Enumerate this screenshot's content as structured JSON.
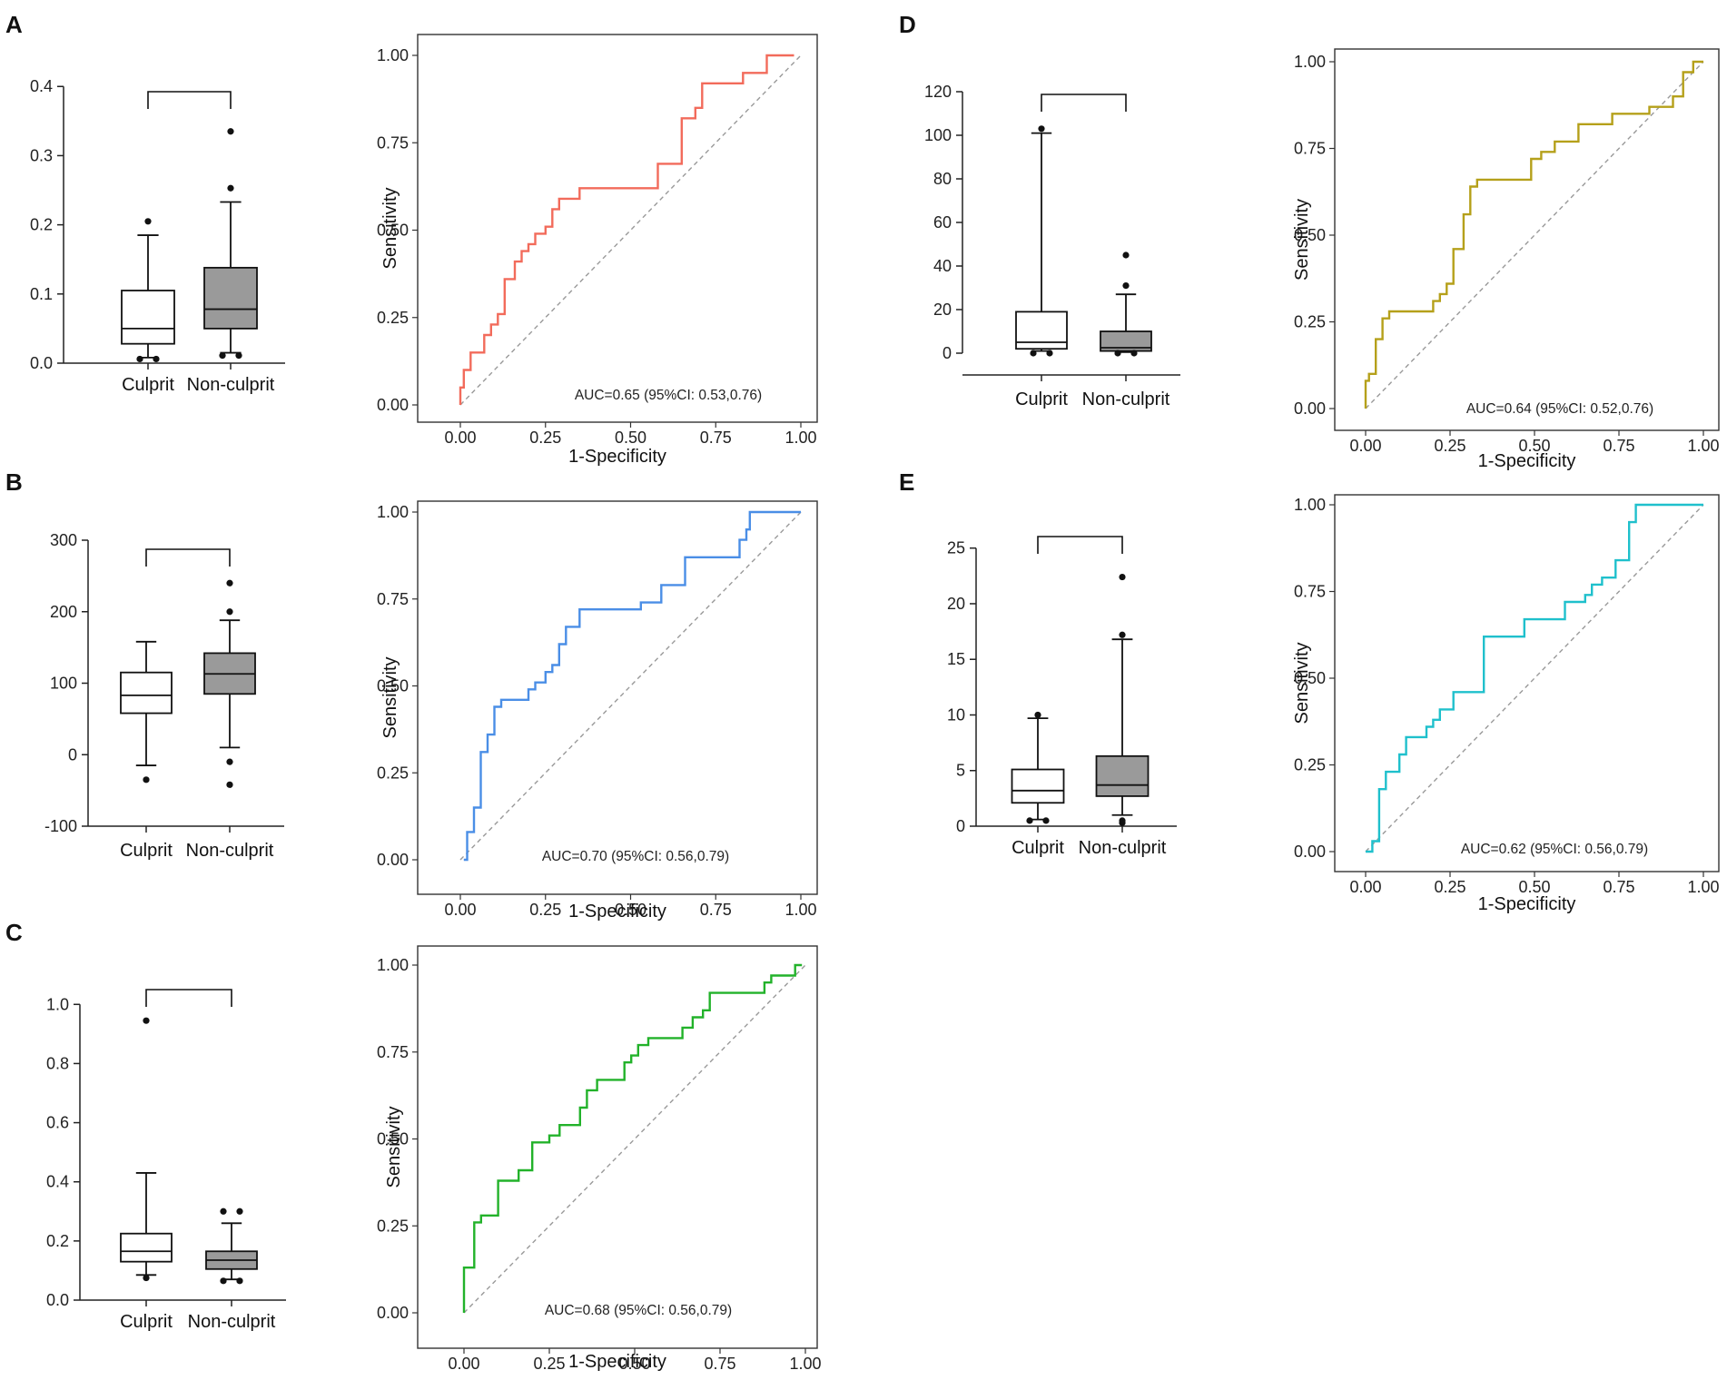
{
  "chart_data": [
    {
      "panel": "A",
      "type": "box",
      "categories": [
        "Culprit",
        "Non-culprit"
      ],
      "yticks": [
        "0.0",
        "0.1",
        "0.2",
        "0.3",
        "0.4"
      ],
      "ylim": [
        0,
        0.42
      ],
      "boxes": [
        {
          "label": "Culprit",
          "q1": 0.028,
          "median": 0.05,
          "q3": 0.105,
          "whisker_low": 0.008,
          "whisker_high": 0.185,
          "outliers": [
            0.205,
            0.006,
            0.006
          ],
          "fill": "#ffffff"
        },
        {
          "label": "Non-culprit",
          "q1": 0.05,
          "median": 0.078,
          "q3": 0.138,
          "whisker_low": 0.015,
          "whisker_high": 0.233,
          "outliers": [
            0.335,
            0.253,
            0.011,
            0.011
          ],
          "fill": "#9a9a9a"
        }
      ]
    },
    {
      "panel": "A",
      "type": "roc",
      "color": "#f26b5b",
      "xlabel": "1-Specificity",
      "ylabel": "Sensitivity",
      "ticks": [
        "0.00",
        "0.25",
        "0.50",
        "0.75",
        "1.00"
      ],
      "auc_label": "AUC=0.65 (95%CI: 0.53,0.76)",
      "points": [
        [
          0,
          0
        ],
        [
          0,
          0.05
        ],
        [
          0.01,
          0.05
        ],
        [
          0.01,
          0.1
        ],
        [
          0.03,
          0.1
        ],
        [
          0.03,
          0.15
        ],
        [
          0.07,
          0.15
        ],
        [
          0.07,
          0.2
        ],
        [
          0.09,
          0.2
        ],
        [
          0.09,
          0.23
        ],
        [
          0.11,
          0.23
        ],
        [
          0.11,
          0.26
        ],
        [
          0.13,
          0.26
        ],
        [
          0.13,
          0.36
        ],
        [
          0.16,
          0.36
        ],
        [
          0.16,
          0.41
        ],
        [
          0.18,
          0.41
        ],
        [
          0.18,
          0.44
        ],
        [
          0.2,
          0.44
        ],
        [
          0.2,
          0.46
        ],
        [
          0.22,
          0.46
        ],
        [
          0.22,
          0.49
        ],
        [
          0.25,
          0.49
        ],
        [
          0.25,
          0.51
        ],
        [
          0.27,
          0.51
        ],
        [
          0.27,
          0.56
        ],
        [
          0.29,
          0.56
        ],
        [
          0.29,
          0.59
        ],
        [
          0.35,
          0.59
        ],
        [
          0.35,
          0.62
        ],
        [
          0.58,
          0.62
        ],
        [
          0.58,
          0.69
        ],
        [
          0.65,
          0.69
        ],
        [
          0.65,
          0.82
        ],
        [
          0.69,
          0.82
        ],
        [
          0.69,
          0.85
        ],
        [
          0.71,
          0.85
        ],
        [
          0.71,
          0.92
        ],
        [
          0.83,
          0.92
        ],
        [
          0.83,
          0.95
        ],
        [
          0.9,
          0.95
        ],
        [
          0.9,
          1.0
        ],
        [
          0.98,
          1.0
        ]
      ]
    },
    {
      "panel": "B",
      "type": "box",
      "categories": [
        "Culprit",
        "Non-culprit"
      ],
      "yticks": [
        "-100",
        "0",
        "100",
        "200",
        "300"
      ],
      "ylim": [
        -100,
        300
      ],
      "boxes": [
        {
          "label": "Culprit",
          "q1": 58,
          "median": 83,
          "q3": 115,
          "whisker_low": -15,
          "whisker_high": 158,
          "outliers": [
            -35
          ],
          "fill": "#ffffff"
        },
        {
          "label": "Non-culprit",
          "q1": 85,
          "median": 113,
          "q3": 142,
          "whisker_low": 10,
          "whisker_high": 188,
          "outliers": [
            240,
            200,
            -10,
            -42
          ],
          "fill": "#9a9a9a"
        }
      ]
    },
    {
      "panel": "B",
      "type": "roc",
      "color": "#4a8ee6",
      "xlabel": "1-Specificity",
      "ylabel": "Sensitivity",
      "ticks": [
        "0.00",
        "0.25",
        "0.50",
        "0.75",
        "1.00"
      ],
      "auc_label": "AUC=0.70 (95%CI: 0.56,0.79)",
      "points": [
        [
          0.01,
          0
        ],
        [
          0.02,
          0
        ],
        [
          0.02,
          0.08
        ],
        [
          0.04,
          0.08
        ],
        [
          0.04,
          0.15
        ],
        [
          0.06,
          0.15
        ],
        [
          0.06,
          0.31
        ],
        [
          0.08,
          0.31
        ],
        [
          0.08,
          0.36
        ],
        [
          0.1,
          0.36
        ],
        [
          0.1,
          0.44
        ],
        [
          0.12,
          0.44
        ],
        [
          0.12,
          0.46
        ],
        [
          0.2,
          0.46
        ],
        [
          0.2,
          0.49
        ],
        [
          0.22,
          0.49
        ],
        [
          0.22,
          0.51
        ],
        [
          0.25,
          0.51
        ],
        [
          0.25,
          0.54
        ],
        [
          0.27,
          0.54
        ],
        [
          0.27,
          0.56
        ],
        [
          0.29,
          0.56
        ],
        [
          0.29,
          0.62
        ],
        [
          0.31,
          0.62
        ],
        [
          0.31,
          0.67
        ],
        [
          0.35,
          0.67
        ],
        [
          0.35,
          0.72
        ],
        [
          0.53,
          0.72
        ],
        [
          0.53,
          0.74
        ],
        [
          0.59,
          0.74
        ],
        [
          0.59,
          0.79
        ],
        [
          0.66,
          0.79
        ],
        [
          0.66,
          0.87
        ],
        [
          0.82,
          0.87
        ],
        [
          0.82,
          0.92
        ],
        [
          0.84,
          0.92
        ],
        [
          0.84,
          0.95
        ],
        [
          0.85,
          0.95
        ],
        [
          0.85,
          1.0
        ],
        [
          1.0,
          1.0
        ]
      ]
    },
    {
      "panel": "C",
      "type": "box",
      "categories": [
        "Culprit",
        "Non-culprit"
      ],
      "yticks": [
        "0.0",
        "0.2",
        "0.4",
        "0.6",
        "0.8",
        "1.0"
      ],
      "ylim": [
        0,
        1.05
      ],
      "boxes": [
        {
          "label": "Culprit",
          "q1": 0.13,
          "median": 0.165,
          "q3": 0.225,
          "whisker_low": 0.085,
          "whisker_high": 0.43,
          "outliers": [
            0.945,
            0.075
          ],
          "fill": "#ffffff"
        },
        {
          "label": "Non-culprit",
          "q1": 0.105,
          "median": 0.135,
          "q3": 0.165,
          "whisker_low": 0.07,
          "whisker_high": 0.26,
          "outliers": [
            0.3,
            0.3,
            0.065,
            0.065
          ],
          "fill": "#9a9a9a"
        }
      ]
    },
    {
      "panel": "C",
      "type": "roc",
      "color": "#22b22a",
      "xlabel": "1-Specificity",
      "ylabel": "Sensitivity",
      "ticks": [
        "0.00",
        "0.25",
        "0.50",
        "0.75",
        "1.00"
      ],
      "auc_label": "AUC=0.68 (95%CI: 0.56,0.79)",
      "points": [
        [
          0,
          0
        ],
        [
          0,
          0.13
        ],
        [
          0.03,
          0.13
        ],
        [
          0.03,
          0.26
        ],
        [
          0.05,
          0.26
        ],
        [
          0.05,
          0.28
        ],
        [
          0.1,
          0.28
        ],
        [
          0.1,
          0.38
        ],
        [
          0.16,
          0.38
        ],
        [
          0.16,
          0.41
        ],
        [
          0.2,
          0.41
        ],
        [
          0.2,
          0.49
        ],
        [
          0.25,
          0.49
        ],
        [
          0.25,
          0.51
        ],
        [
          0.28,
          0.51
        ],
        [
          0.28,
          0.54
        ],
        [
          0.34,
          0.54
        ],
        [
          0.34,
          0.59
        ],
        [
          0.36,
          0.59
        ],
        [
          0.36,
          0.64
        ],
        [
          0.39,
          0.64
        ],
        [
          0.39,
          0.67
        ],
        [
          0.47,
          0.67
        ],
        [
          0.47,
          0.72
        ],
        [
          0.49,
          0.72
        ],
        [
          0.49,
          0.74
        ],
        [
          0.51,
          0.74
        ],
        [
          0.51,
          0.77
        ],
        [
          0.54,
          0.77
        ],
        [
          0.54,
          0.79
        ],
        [
          0.64,
          0.79
        ],
        [
          0.64,
          0.82
        ],
        [
          0.67,
          0.82
        ],
        [
          0.67,
          0.85
        ],
        [
          0.7,
          0.85
        ],
        [
          0.7,
          0.87
        ],
        [
          0.72,
          0.87
        ],
        [
          0.72,
          0.92
        ],
        [
          0.88,
          0.92
        ],
        [
          0.88,
          0.95
        ],
        [
          0.9,
          0.95
        ],
        [
          0.9,
          0.97
        ],
        [
          0.97,
          0.97
        ],
        [
          0.97,
          1.0
        ],
        [
          0.99,
          1.0
        ]
      ]
    },
    {
      "panel": "D",
      "type": "box",
      "categories": [
        "Culprit",
        "Non-culprit"
      ],
      "yticks": [
        "0",
        "20",
        "40",
        "60",
        "80",
        "100",
        "120"
      ],
      "ylim": [
        -10,
        125
      ],
      "boxes": [
        {
          "label": "Culprit",
          "q1": 2,
          "median": 5,
          "q3": 19,
          "whisker_low": 1,
          "whisker_high": 101,
          "outliers": [
            103,
            0,
            0
          ],
          "fill": "#ffffff"
        },
        {
          "label": "Non-culprit",
          "q1": 1,
          "median": 2.5,
          "q3": 10,
          "whisker_low": 0.5,
          "whisker_high": 27,
          "outliers": [
            45,
            31,
            0,
            0
          ],
          "fill": "#9a9a9a"
        }
      ]
    },
    {
      "panel": "D",
      "type": "roc",
      "color": "#b5a01a",
      "xlabel": "1-Specificity",
      "ylabel": "Sensitivity",
      "ticks": [
        "0.00",
        "0.25",
        "0.50",
        "0.75",
        "1.00"
      ],
      "auc_label": "AUC=0.64 (95%CI: 0.52,0.76)",
      "points": [
        [
          0,
          0
        ],
        [
          0,
          0.08
        ],
        [
          0.01,
          0.08
        ],
        [
          0.01,
          0.1
        ],
        [
          0.03,
          0.1
        ],
        [
          0.03,
          0.2
        ],
        [
          0.05,
          0.2
        ],
        [
          0.05,
          0.26
        ],
        [
          0.07,
          0.26
        ],
        [
          0.07,
          0.28
        ],
        [
          0.2,
          0.28
        ],
        [
          0.2,
          0.31
        ],
        [
          0.22,
          0.31
        ],
        [
          0.22,
          0.33
        ],
        [
          0.24,
          0.33
        ],
        [
          0.24,
          0.36
        ],
        [
          0.26,
          0.36
        ],
        [
          0.26,
          0.46
        ],
        [
          0.29,
          0.46
        ],
        [
          0.29,
          0.56
        ],
        [
          0.31,
          0.56
        ],
        [
          0.31,
          0.64
        ],
        [
          0.33,
          0.64
        ],
        [
          0.33,
          0.66
        ],
        [
          0.49,
          0.66
        ],
        [
          0.49,
          0.72
        ],
        [
          0.52,
          0.72
        ],
        [
          0.52,
          0.74
        ],
        [
          0.56,
          0.74
        ],
        [
          0.56,
          0.77
        ],
        [
          0.63,
          0.77
        ],
        [
          0.63,
          0.82
        ],
        [
          0.73,
          0.82
        ],
        [
          0.73,
          0.85
        ],
        [
          0.84,
          0.85
        ],
        [
          0.84,
          0.87
        ],
        [
          0.91,
          0.87
        ],
        [
          0.91,
          0.9
        ],
        [
          0.94,
          0.9
        ],
        [
          0.94,
          0.97
        ],
        [
          0.97,
          0.97
        ],
        [
          0.97,
          1.0
        ],
        [
          1.0,
          1.0
        ]
      ]
    },
    {
      "panel": "E",
      "type": "box",
      "categories": [
        "Culprit",
        "Non-culprit"
      ],
      "yticks": [
        "0",
        "5",
        "10",
        "15",
        "20",
        "25"
      ],
      "ylim": [
        0,
        26.2
      ],
      "boxes": [
        {
          "label": "Culprit",
          "q1": 2.1,
          "median": 3.2,
          "q3": 5.1,
          "whisker_low": 0.6,
          "whisker_high": 9.7,
          "outliers": [
            10,
            0.5,
            0.5
          ],
          "fill": "#ffffff"
        },
        {
          "label": "Non-culprit",
          "q1": 2.7,
          "median": 3.7,
          "q3": 6.3,
          "whisker_low": 1.0,
          "whisker_high": 16.8,
          "outliers": [
            22.4,
            17.2,
            0.3,
            0.5
          ],
          "fill": "#9a9a9a"
        }
      ]
    },
    {
      "panel": "E",
      "type": "roc",
      "color": "#1fc0cc",
      "xlabel": "1-Specificity",
      "ylabel": "Sensitivity",
      "ticks": [
        "0.00",
        "0.25",
        "0.50",
        "0.75",
        "1.00"
      ],
      "auc_label": "AUC=0.62 (95%CI: 0.56,0.79)",
      "points": [
        [
          0,
          0
        ],
        [
          0.02,
          0
        ],
        [
          0.02,
          0.03
        ],
        [
          0.04,
          0.03
        ],
        [
          0.04,
          0.18
        ],
        [
          0.06,
          0.18
        ],
        [
          0.06,
          0.23
        ],
        [
          0.1,
          0.23
        ],
        [
          0.1,
          0.28
        ],
        [
          0.12,
          0.28
        ],
        [
          0.12,
          0.33
        ],
        [
          0.18,
          0.33
        ],
        [
          0.18,
          0.36
        ],
        [
          0.2,
          0.36
        ],
        [
          0.2,
          0.38
        ],
        [
          0.22,
          0.38
        ],
        [
          0.22,
          0.41
        ],
        [
          0.26,
          0.41
        ],
        [
          0.26,
          0.46
        ],
        [
          0.35,
          0.46
        ],
        [
          0.35,
          0.62
        ],
        [
          0.47,
          0.62
        ],
        [
          0.47,
          0.67
        ],
        [
          0.59,
          0.67
        ],
        [
          0.59,
          0.72
        ],
        [
          0.65,
          0.72
        ],
        [
          0.65,
          0.74
        ],
        [
          0.67,
          0.74
        ],
        [
          0.67,
          0.77
        ],
        [
          0.7,
          0.77
        ],
        [
          0.7,
          0.79
        ],
        [
          0.74,
          0.79
        ],
        [
          0.74,
          0.84
        ],
        [
          0.78,
          0.84
        ],
        [
          0.78,
          0.95
        ],
        [
          0.8,
          0.95
        ],
        [
          0.8,
          1.0
        ],
        [
          1.0,
          1.0
        ]
      ]
    }
  ],
  "panels": [
    {
      "letter": "A"
    },
    {
      "letter": "B"
    },
    {
      "letter": "C"
    },
    {
      "letter": "D"
    },
    {
      "letter": "E"
    }
  ]
}
